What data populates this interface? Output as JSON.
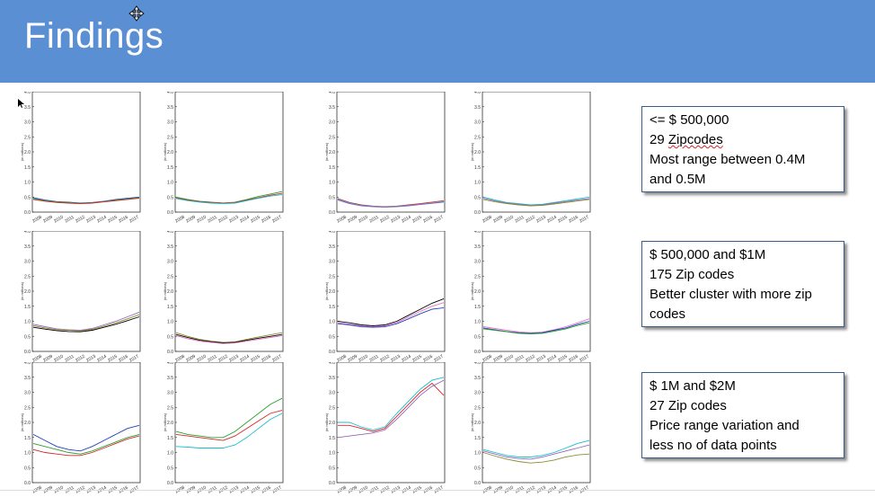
{
  "slide": {
    "title": "Findings"
  },
  "notes": [
    {
      "lines": [
        "<= $ 500,000",
        "29 Zipcodes",
        "Most range between 0.4M",
        "and 0.5M"
      ]
    },
    {
      "lines": [
        "$ 500,000 and $1M",
        "175 Zip codes",
        "Better cluster with more zip",
        "codes"
      ]
    },
    {
      "lines": [
        "$ 1M and $2M",
        "27 Zip codes",
        "Price range variation and",
        "less no of data points"
      ]
    }
  ],
  "axis": {
    "ylabel": "(in millions)",
    "yticks": [
      "0.0",
      "0.5",
      "1.0",
      "1.5",
      "2.0",
      "2.5",
      "3.0",
      "3.5",
      "4.0"
    ],
    "xticks": [
      "2008",
      "2009",
      "2010",
      "2011",
      "2012",
      "2013",
      "2014",
      "2015",
      "2016",
      "2017"
    ]
  },
  "colors": [
    "#1f3fbf",
    "#2ca02c",
    "#d62728",
    "#17becf",
    "#9467bd",
    "#8c8c30",
    "#000000",
    "#e377c2"
  ],
  "chart_data": [
    {
      "type": "line",
      "ylim": [
        0,
        4
      ],
      "series": [
        {
          "values": [
            0.48,
            0.4,
            0.35,
            0.33,
            0.3,
            0.32,
            0.36,
            0.42,
            0.46,
            0.5
          ]
        },
        {
          "values": [
            0.45,
            0.38,
            0.34,
            0.32,
            0.29,
            0.31,
            0.35,
            0.4,
            0.44,
            0.48
          ]
        },
        {
          "values": [
            0.42,
            0.36,
            0.32,
            0.3,
            0.28,
            0.3,
            0.34,
            0.38,
            0.42,
            0.46
          ]
        }
      ]
    },
    {
      "type": "line",
      "ylim": [
        0,
        4
      ],
      "series": [
        {
          "values": [
            0.5,
            0.42,
            0.36,
            0.33,
            0.3,
            0.33,
            0.42,
            0.52,
            0.6,
            0.68
          ]
        },
        {
          "values": [
            0.47,
            0.4,
            0.35,
            0.32,
            0.3,
            0.32,
            0.4,
            0.48,
            0.56,
            0.62
          ]
        },
        {
          "values": [
            0.45,
            0.38,
            0.33,
            0.3,
            0.28,
            0.3,
            0.38,
            0.46,
            0.53,
            0.58
          ]
        }
      ]
    },
    {
      "type": "line",
      "ylim": [
        0,
        4
      ],
      "series": [
        {
          "values": [
            0.45,
            0.32,
            0.24,
            0.2,
            0.18,
            0.2,
            0.24,
            0.28,
            0.33,
            0.38
          ]
        },
        {
          "values": [
            0.42,
            0.3,
            0.22,
            0.19,
            0.17,
            0.19,
            0.22,
            0.26,
            0.3,
            0.35
          ]
        },
        {
          "values": [
            0.4,
            0.28,
            0.21,
            0.18,
            0.16,
            0.18,
            0.21,
            0.25,
            0.29,
            0.33
          ]
        }
      ]
    },
    {
      "type": "line",
      "ylim": [
        0,
        4
      ],
      "series": [
        {
          "values": [
            0.5,
            0.4,
            0.32,
            0.28,
            0.24,
            0.26,
            0.32,
            0.38,
            0.44,
            0.5
          ]
        },
        {
          "values": [
            0.46,
            0.37,
            0.3,
            0.26,
            0.22,
            0.24,
            0.3,
            0.35,
            0.4,
            0.45
          ]
        },
        {
          "values": [
            0.42,
            0.34,
            0.28,
            0.24,
            0.21,
            0.22,
            0.27,
            0.32,
            0.37,
            0.42
          ]
        }
      ]
    },
    {
      "type": "line",
      "ylim": [
        0,
        4
      ],
      "series": [
        {
          "values": [
            0.9,
            0.82,
            0.75,
            0.72,
            0.7,
            0.76,
            0.88,
            1.0,
            1.15,
            1.3
          ]
        },
        {
          "values": [
            0.85,
            0.78,
            0.72,
            0.7,
            0.68,
            0.73,
            0.84,
            0.95,
            1.08,
            1.22
          ]
        },
        {
          "values": [
            0.8,
            0.74,
            0.69,
            0.66,
            0.65,
            0.7,
            0.8,
            0.9,
            1.02,
            1.15
          ]
        }
      ]
    },
    {
      "type": "line",
      "ylim": [
        0,
        4
      ],
      "series": [
        {
          "values": [
            0.62,
            0.5,
            0.4,
            0.34,
            0.3,
            0.32,
            0.4,
            0.48,
            0.55,
            0.62
          ]
        },
        {
          "values": [
            0.56,
            0.46,
            0.37,
            0.32,
            0.28,
            0.3,
            0.37,
            0.44,
            0.5,
            0.56
          ]
        },
        {
          "values": [
            0.52,
            0.42,
            0.34,
            0.3,
            0.26,
            0.28,
            0.34,
            0.4,
            0.46,
            0.52
          ]
        }
      ]
    },
    {
      "type": "line",
      "ylim": [
        0,
        4
      ],
      "series": [
        {
          "values": [
            1.0,
            0.95,
            0.88,
            0.85,
            0.88,
            1.0,
            1.2,
            1.4,
            1.6,
            1.75
          ]
        },
        {
          "values": [
            0.95,
            0.9,
            0.85,
            0.82,
            0.85,
            0.96,
            1.14,
            1.33,
            1.5,
            1.62
          ]
        },
        {
          "values": [
            0.92,
            0.88,
            0.82,
            0.8,
            0.82,
            0.92,
            1.08,
            1.25,
            1.4,
            1.45
          ]
        }
      ]
    },
    {
      "type": "line",
      "ylim": [
        0,
        4
      ],
      "series": [
        {
          "values": [
            0.82,
            0.76,
            0.7,
            0.65,
            0.62,
            0.64,
            0.72,
            0.82,
            0.95,
            1.08
          ]
        },
        {
          "values": [
            0.78,
            0.72,
            0.66,
            0.62,
            0.6,
            0.62,
            0.7,
            0.78,
            0.9,
            1.0
          ]
        },
        {
          "values": [
            0.75,
            0.7,
            0.65,
            0.6,
            0.58,
            0.6,
            0.67,
            0.75,
            0.86,
            0.95
          ]
        }
      ]
    },
    {
      "type": "line",
      "ylim": [
        0,
        4
      ],
      "series": [
        {
          "values": [
            1.6,
            1.4,
            1.2,
            1.1,
            1.05,
            1.2,
            1.4,
            1.6,
            1.8,
            1.9
          ]
        },
        {
          "values": [
            1.3,
            1.2,
            1.1,
            1.0,
            0.95,
            1.05,
            1.2,
            1.35,
            1.5,
            1.6
          ]
        },
        {
          "values": [
            1.1,
            1.0,
            0.95,
            0.9,
            0.9,
            1.0,
            1.15,
            1.3,
            1.45,
            1.55
          ]
        }
      ]
    },
    {
      "type": "line",
      "ylim": [
        0,
        4
      ],
      "series": [
        {
          "values": [
            1.7,
            1.6,
            1.55,
            1.5,
            1.5,
            1.7,
            2.0,
            2.3,
            2.6,
            2.8
          ]
        },
        {
          "values": [
            1.6,
            1.55,
            1.5,
            1.45,
            1.4,
            1.55,
            1.8,
            2.05,
            2.3,
            2.4
          ]
        },
        {
          "values": [
            1.2,
            1.18,
            1.15,
            1.15,
            1.15,
            1.25,
            1.5,
            1.8,
            2.1,
            2.3
          ]
        }
      ]
    },
    {
      "type": "line",
      "ylim": [
        0,
        4
      ],
      "series": [
        {
          "values": [
            1.9,
            1.9,
            1.8,
            1.7,
            1.8,
            2.2,
            2.6,
            3.0,
            3.3,
            2.9
          ]
        },
        {
          "values": [
            2.0,
            2.0,
            1.85,
            1.75,
            1.85,
            2.3,
            2.7,
            3.1,
            3.4,
            3.5
          ]
        },
        {
          "values": [
            1.5,
            1.55,
            1.6,
            1.65,
            1.75,
            2.1,
            2.5,
            2.9,
            3.2,
            3.4
          ]
        }
      ]
    },
    {
      "type": "line",
      "ylim": [
        0,
        4
      ],
      "series": [
        {
          "values": [
            1.1,
            1.0,
            0.9,
            0.85,
            0.85,
            0.9,
            1.0,
            1.15,
            1.3,
            1.4
          ]
        },
        {
          "values": [
            1.05,
            0.95,
            0.85,
            0.8,
            0.78,
            0.85,
            0.95,
            1.05,
            1.15,
            1.25
          ]
        },
        {
          "values": [
            1.0,
            0.88,
            0.78,
            0.7,
            0.65,
            0.68,
            0.75,
            0.85,
            0.92,
            0.95
          ]
        }
      ]
    }
  ]
}
